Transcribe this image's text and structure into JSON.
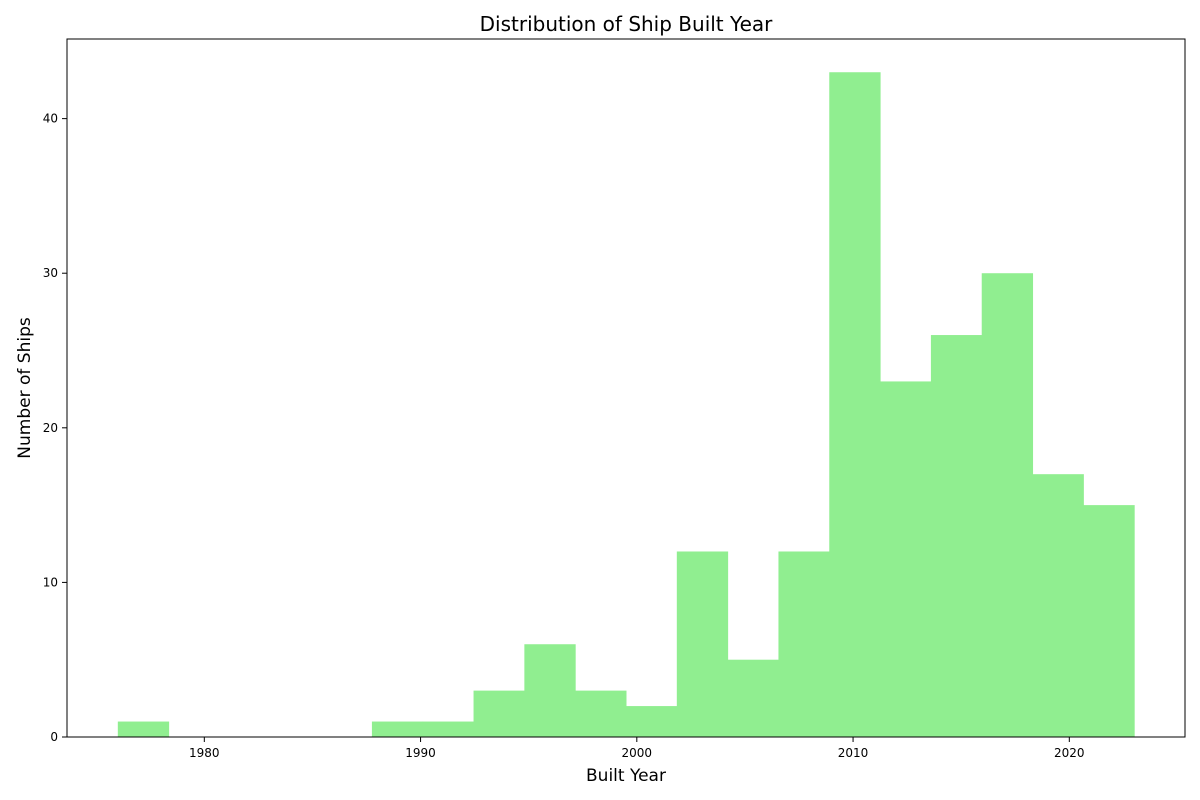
{
  "chart_data": {
    "type": "bar",
    "title": "Distribution of Ship Built Year",
    "xlabel": "Built Year",
    "ylabel": "Number of Ships",
    "bin_edges": [
      1976.0,
      1978.35,
      1980.7,
      1983.05,
      1985.4,
      1987.75,
      1990.1,
      1992.45,
      1994.8,
      1997.15,
      1999.5,
      2001.85,
      2004.2,
      2006.55,
      2008.9,
      2011.25,
      2013.6,
      2015.95,
      2018.3,
      2020.65,
      2023.0
    ],
    "counts": [
      1,
      0,
      0,
      0,
      0,
      1,
      1,
      3,
      6,
      3,
      2,
      12,
      5,
      12,
      43,
      23,
      26,
      30,
      17,
      15
    ],
    "xlim": [
      1973.65,
      2025.35
    ],
    "ylim": [
      0,
      45.15
    ],
    "x_ticks": [
      1980,
      1990,
      2000,
      2010,
      2020
    ],
    "y_ticks": [
      0,
      10,
      20,
      30,
      40
    ],
    "bar_color": "#90ee90",
    "grid": false
  }
}
